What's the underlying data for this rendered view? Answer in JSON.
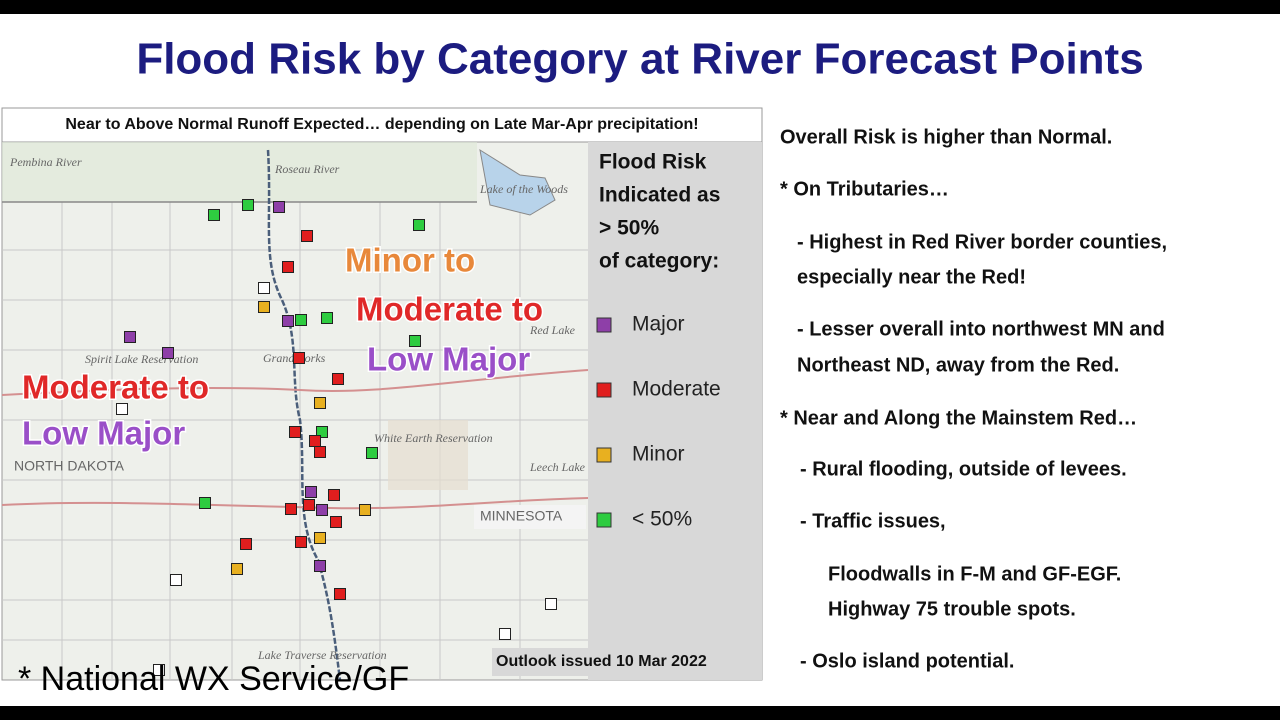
{
  "title": "Flood Risk by Category at River Forecast Points",
  "map": {
    "caption": "Near to Above Normal Runoff Expected… depending on Late Mar-Apr precipitation!",
    "places": [
      "Pembina River",
      "Roseau River",
      "Lake of the Woods",
      "Spirit Lake Reservation",
      "Grand Forks",
      "White Earth Reservation",
      "Red Lake",
      "Leech Lake",
      "Lake Traverse Reservation"
    ],
    "states": [
      "NORTH DAKOTA",
      "MINNESOTA"
    ],
    "annotations": [
      {
        "text": "Minor to",
        "color": "#e8883a"
      },
      {
        "text": "Moderate to",
        "color": "#e02828"
      },
      {
        "text": "Low Major",
        "color": "#9a4fc8"
      },
      {
        "text": "Moderate to",
        "color": "#e02828"
      },
      {
        "text": "Low Major",
        "color": "#9a4fc8"
      }
    ],
    "legend": {
      "heading": [
        "Flood Risk",
        "Indicated as",
        "> 50%",
        "of category:"
      ],
      "items": [
        {
          "label": "Major",
          "color": "#8e3fa8"
        },
        {
          "label": "Moderate",
          "color": "#e01e1e"
        },
        {
          "label": "Minor",
          "color": "#e8b020"
        },
        {
          "label": "< 50%",
          "color": "#2ecc40"
        }
      ]
    },
    "outlook": "Outlook issued 10 Mar 2022"
  },
  "credit": "* National WX Service/GF",
  "bullets": [
    "Overall Risk is higher than Normal.",
    "* On Tributaries…",
    "- Highest in Red River border counties,",
    "especially near the Red!",
    "- Lesser overall into northwest MN and",
    "Northeast ND, away from the Red.",
    "* Near and Along the Mainstem Red…",
    "- Rural flooding, outside of levees.",
    "- Traffic issues,",
    "Floodwalls in F-M and GF-EGF.",
    "Highway 75 trouble spots.",
    "- Oslo island potential."
  ]
}
